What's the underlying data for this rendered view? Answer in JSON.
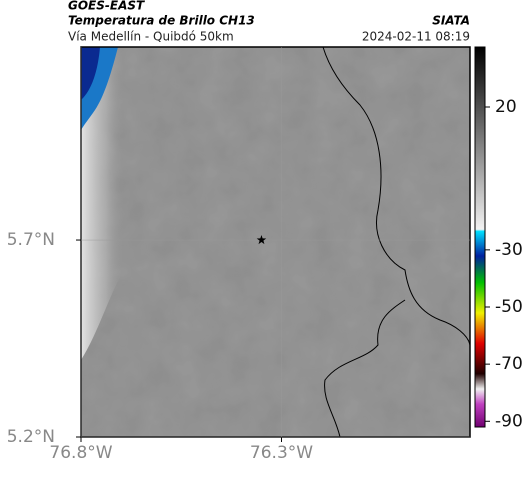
{
  "header": {
    "title": "GOES-EAST",
    "subtitle": "Temperatura de Brillo CH13",
    "source": "SIATA",
    "region": "Vía Medellín - Quibdó 50km",
    "datetime": "2024-02-11 08:19"
  },
  "map": {
    "xlim": [
      -76.8,
      -75.83
    ],
    "ylim": [
      5.2,
      6.19
    ],
    "xticks": [
      {
        "value": -76.8,
        "label": "76.8°W"
      },
      {
        "value": -76.3,
        "label": "76.3°W"
      }
    ],
    "yticks": [
      {
        "value": 5.7,
        "label": "5.7°N"
      },
      {
        "value": 5.2,
        "label": "5.2°N"
      }
    ],
    "marker": {
      "lon": -76.35,
      "lat": 5.7
    }
  },
  "colorbar": {
    "lim": [
      41,
      -92
    ],
    "ticks": [
      20,
      -30,
      -50,
      -70,
      -90
    ]
  }
}
